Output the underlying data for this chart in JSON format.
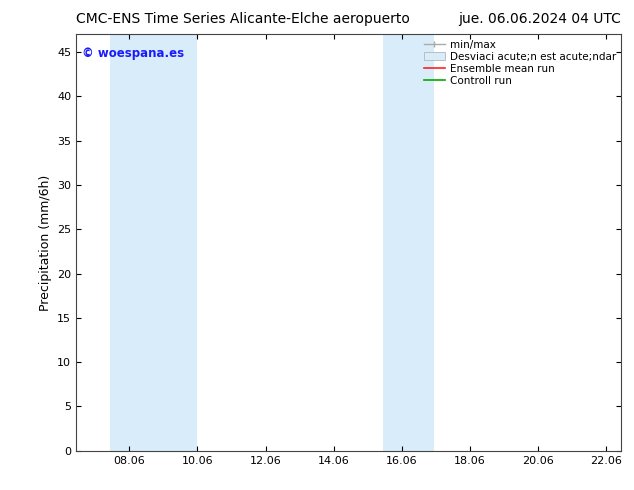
{
  "title_left": "CMC-ENS Time Series Alicante-Elche aeropuerto",
  "title_right": "jue. 06.06.2024 04 UTC",
  "ylabel": "Precipitation (mm/6h)",
  "xmin": 6.5,
  "xmax": 22.5,
  "ymin": 0,
  "ymax": 47,
  "yticks": [
    0,
    5,
    10,
    15,
    20,
    25,
    30,
    35,
    40,
    45
  ],
  "xtick_labels": [
    "08.06",
    "10.06",
    "12.06",
    "14.06",
    "16.06",
    "18.06",
    "20.06",
    "22.06"
  ],
  "xtick_positions": [
    8.06,
    10.06,
    12.06,
    14.06,
    16.06,
    18.06,
    20.06,
    22.06
  ],
  "shaded_bands": [
    {
      "xmin": 7.5,
      "xmax": 10.06,
      "color": "#d9ecf9"
    },
    {
      "xmin": 15.5,
      "xmax": 17.0,
      "color": "#d9ecf9"
    }
  ],
  "watermark": "© woespana.es",
  "watermark_color": "#1a1aff",
  "bg_color": "#ffffff",
  "plot_bg_color": "#ffffff",
  "title_fontsize": 10,
  "axis_label_fontsize": 9,
  "tick_fontsize": 8,
  "legend_label_fontsize": 7.5
}
